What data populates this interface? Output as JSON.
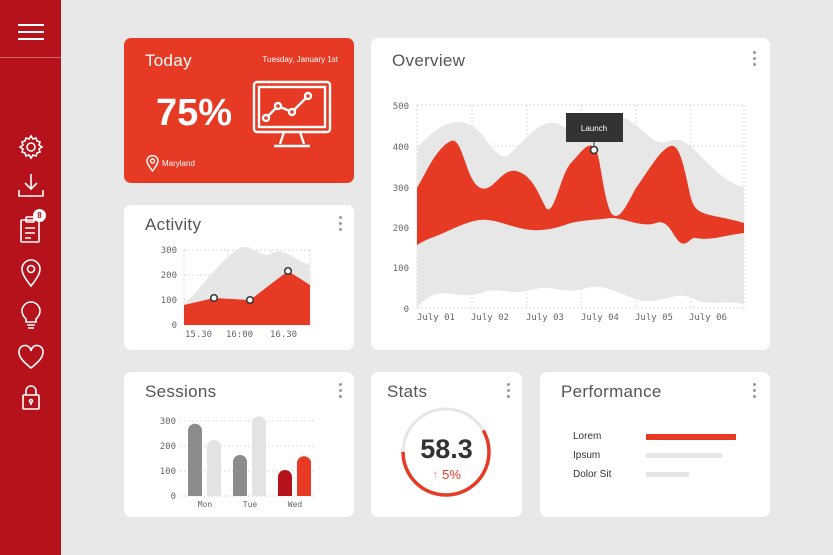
{
  "sidebar": {
    "icons": [
      "menu-icon",
      "gear-icon",
      "download-icon",
      "clipboard-icon",
      "location-pin-icon",
      "lightbulb-icon",
      "heart-icon",
      "lock-icon"
    ],
    "badge": "8"
  },
  "today": {
    "title": "Today",
    "date": "Tuesday, January 1st",
    "percent": "75%",
    "location": "Maryland"
  },
  "overview": {
    "title": "Overview",
    "tooltip": "Launch",
    "chart_data": {
      "type": "area",
      "x_tick_labels": [
        "July 01",
        "July 02",
        "July 03",
        "July 04",
        "July 05",
        "July 06"
      ],
      "y_tick_labels": [
        "0",
        "100",
        "200",
        "300",
        "400",
        "500"
      ],
      "ylim": [
        0,
        500
      ],
      "grid": true,
      "annotation": {
        "label": "Launch",
        "x": "July 04",
        "y": 390
      },
      "colors": {
        "primary": "#e63a24",
        "secondary": "#e6e6e6"
      }
    }
  },
  "activity": {
    "title": "Activity",
    "chart_data": {
      "type": "area",
      "x_tick_labels": [
        "15.30",
        "16:00",
        "16.30"
      ],
      "y_tick_labels": [
        "0",
        "100",
        "200",
        "300"
      ],
      "ylim": [
        0,
        300
      ],
      "points": [
        {
          "x": 0.24,
          "y": 110
        },
        {
          "x": 0.53,
          "y": 100
        },
        {
          "x": 0.82,
          "y": 220
        }
      ],
      "colors": {
        "primary": "#e63a24",
        "secondary": "#e6e6e6"
      }
    }
  },
  "sessions": {
    "title": "Sessions",
    "chart_data": {
      "type": "bar",
      "categories": [
        "Mon",
        "Tue",
        "Wed"
      ],
      "series": [
        {
          "values": [
            285,
            160,
            100
          ]
        },
        {
          "values": [
            220,
            315,
            155
          ]
        }
      ],
      "y_tick_labels": [
        "0",
        "100",
        "200",
        "300"
      ],
      "ylim": [
        0,
        300
      ],
      "colors": {
        "series1": [
          "#8c8c8c",
          "#8c8c8c",
          "#b5121b"
        ],
        "series2": [
          "#e3e3e3",
          "#e3e3e3",
          "#e63a24"
        ]
      }
    }
  },
  "stats": {
    "title": "Stats",
    "value": "58.3",
    "change": "5%",
    "change_arrow": "↑",
    "progress": 0.583
  },
  "performance": {
    "title": "Performance",
    "chart_data": {
      "type": "bar",
      "categories": [
        "Lorem",
        "Ipsum",
        "Dolor Sit"
      ],
      "values": [
        0.95,
        0.8,
        0.45
      ],
      "colors": [
        "#e63a24",
        "#e6e6e6",
        "#e6e6e6"
      ]
    }
  }
}
